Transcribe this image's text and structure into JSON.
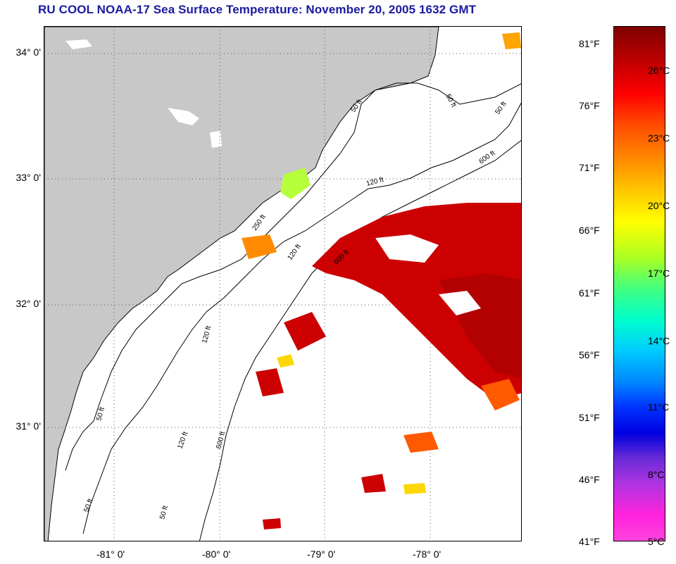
{
  "title": "RU COOL  NOAA-17  Sea Surface Temperature:  November 20, 2005 1632 GMT",
  "lat_labels": [
    "34° 0'",
    "33° 0'",
    "32° 0'",
    "31° 0'"
  ],
  "lon_labels": [
    "-81° 0'",
    "-80° 0'",
    "-79° 0'",
    "-78° 0'"
  ],
  "isobath_labels": [
    "50 ft",
    "50 ft",
    "50 ft",
    "50 ft",
    "120 ft",
    "120 ft",
    "120 ft",
    "120 ft",
    "600 ft",
    "600 ft",
    "600 ft",
    "250 ft",
    "50 ft",
    "50 ft"
  ],
  "colorbar": {
    "fahrenheit": [
      "81°F",
      "76°F",
      "71°F",
      "66°F",
      "61°F",
      "56°F",
      "51°F",
      "46°F",
      "41°F"
    ],
    "celsius": [
      "26°C",
      "23°C",
      "20°C",
      "17°C",
      "14°C",
      "11°C",
      "8°C",
      "5°C"
    ]
  },
  "colors": {
    "land": "#c8c8c8",
    "title": "#1a1aa0",
    "warm": "#cc0000",
    "hot": "#b30000",
    "mid": "#ff5a00",
    "cool": "#ffd700",
    "green": "#b6ff3a"
  }
}
